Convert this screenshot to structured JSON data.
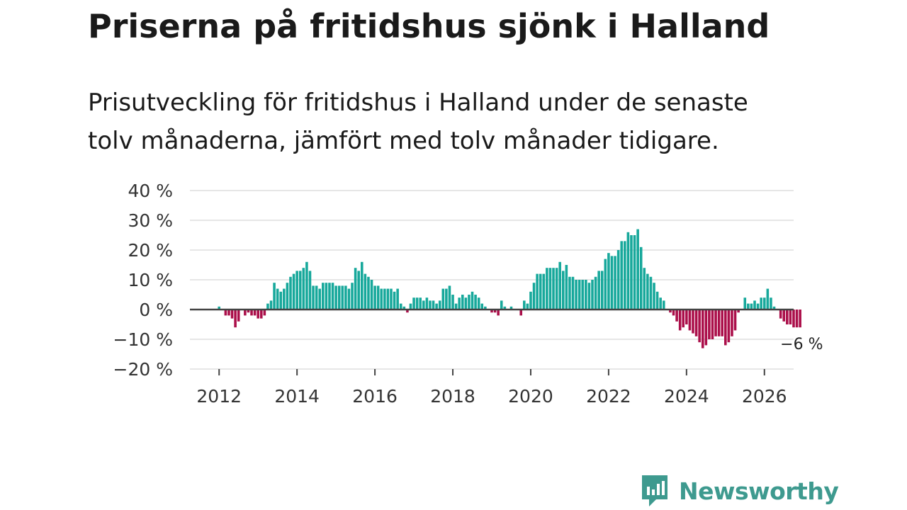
{
  "title": "Priserna på fritidshus sjönk i Halland",
  "subtitle": "Prisutveckling för fritidshus i Halland under de senaste tolv månaderna, jämfört med tolv månader tidigare.",
  "brand": {
    "name": "Newsworthy"
  },
  "colors": {
    "positive": "#17a89b",
    "negative": "#ab0f4a",
    "grid": "#dddddd",
    "zero_line": "#444444",
    "brand": "#3e9a8f"
  },
  "chart_data": {
    "type": "bar",
    "title": "Priserna på fritidshus sjönk i Halland",
    "xlabel": "",
    "ylabel": "",
    "ylim": [
      -20,
      40
    ],
    "yticks": [
      40,
      30,
      20,
      10,
      0,
      -10,
      -20
    ],
    "ytick_labels": [
      "40 %",
      "30 %",
      "20 %",
      "10 %",
      "0 %",
      "−10 %",
      "−20 %"
    ],
    "xlim": [
      2011.25,
      2026.75
    ],
    "xticks": [
      2012,
      2014,
      2016,
      2018,
      2020,
      2022,
      2024,
      2026
    ],
    "xtick_labels": [
      "2012",
      "2014",
      "2016",
      "2018",
      "2020",
      "2022",
      "2024",
      "2026"
    ],
    "grid": true,
    "series_start": "2012-01",
    "values": [
      1,
      0,
      -2,
      -2,
      -3,
      -6,
      -4,
      0,
      -2,
      -1,
      -2,
      -2,
      -3,
      -3,
      -2,
      2,
      3,
      9,
      7,
      6,
      7,
      9,
      11,
      12,
      13,
      13,
      14,
      16,
      13,
      8,
      8,
      7,
      9,
      9,
      9,
      9,
      8,
      8,
      8,
      8,
      7,
      9,
      14,
      13,
      16,
      12,
      11,
      10,
      8,
      8,
      7,
      7,
      7,
      7,
      6,
      7,
      2,
      1,
      -1,
      2,
      4,
      4,
      4,
      3,
      4,
      3,
      3,
      2,
      3,
      7,
      7,
      8,
      5,
      2,
      4,
      5,
      4,
      5,
      6,
      5,
      4,
      2,
      1,
      0,
      -1,
      -1,
      -2,
      3,
      1,
      0,
      1,
      0,
      0,
      -2,
      3,
      2,
      6,
      9,
      12,
      12,
      12,
      14,
      14,
      14,
      14,
      16,
      13,
      15,
      11,
      11,
      10,
      10,
      10,
      10,
      9,
      10,
      11,
      13,
      13,
      17,
      19,
      18,
      18,
      20,
      23,
      23,
      26,
      25,
      25,
      27,
      21,
      14,
      12,
      11,
      9,
      6,
      4,
      3,
      0,
      -1,
      -2,
      -4,
      -7,
      -6,
      -5,
      -7,
      -8,
      -9,
      -11,
      -13,
      -12,
      -10,
      -10,
      -9,
      -9,
      -9,
      -12,
      -11,
      -9,
      -7,
      -1,
      0,
      4,
      2,
      2,
      3,
      2,
      4,
      4,
      7,
      4,
      1,
      0,
      -3,
      -4,
      -5,
      -5,
      -6,
      -6,
      -6
    ],
    "annotation": {
      "label": "−6 %",
      "value": -6
    }
  }
}
